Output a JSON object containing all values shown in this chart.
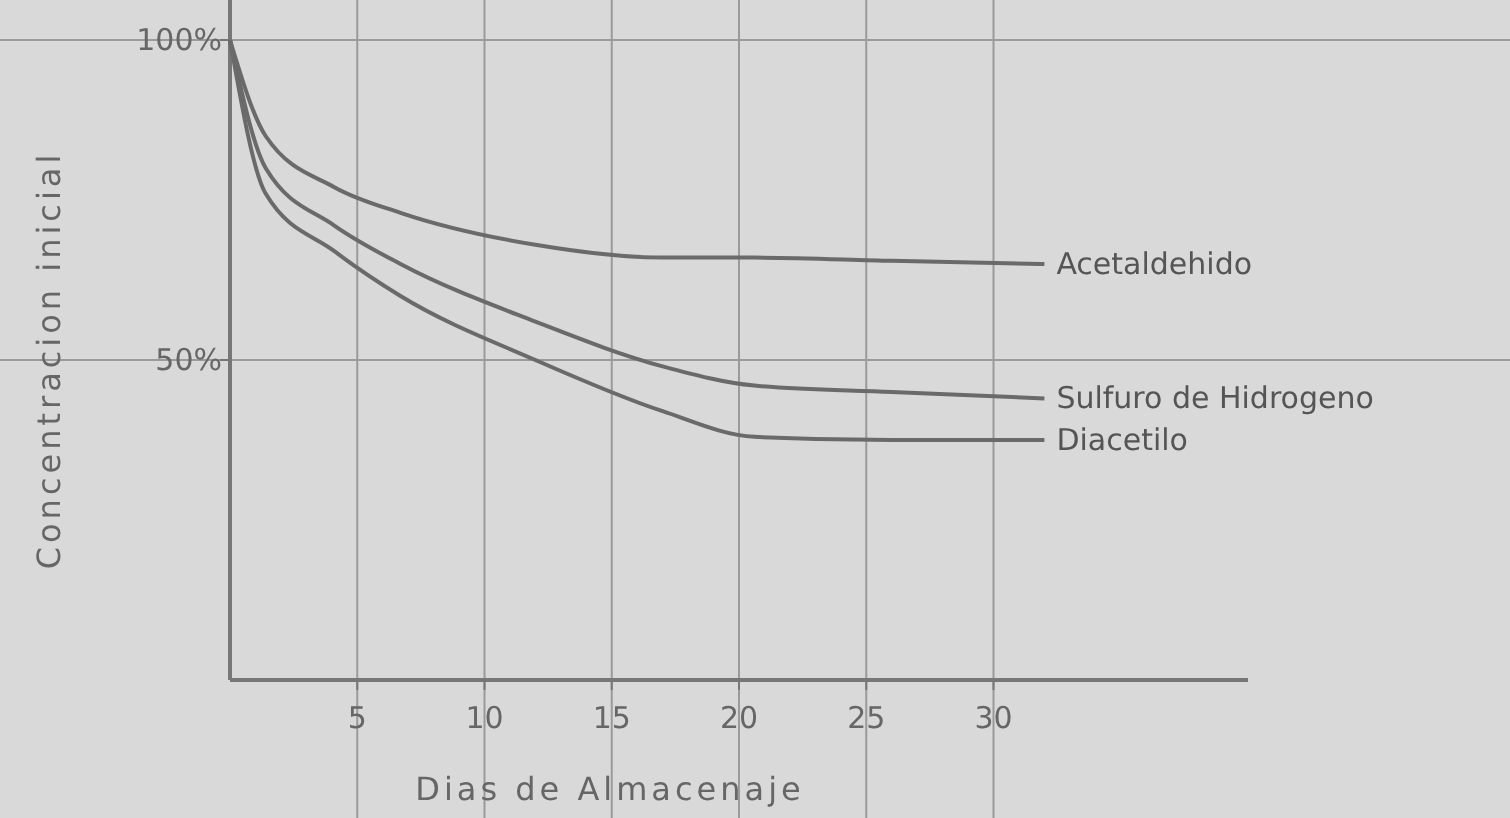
{
  "chart_data": {
    "type": "line",
    "xlabel": "Dias de Almacenaje",
    "ylabel": "Concentracion inicial",
    "xlim": [
      0,
      40
    ],
    "ylim": [
      0,
      100
    ],
    "xticks": [
      5,
      10,
      15,
      20,
      25,
      30
    ],
    "yticks": [
      {
        "value": 100,
        "label": "100%"
      },
      {
        "value": 50,
        "label": "50%"
      }
    ],
    "grid": true,
    "marker": "none",
    "line_style": "solid",
    "x": [
      0,
      1.4,
      4.1,
      6.7,
      12,
      17,
      20.6,
      26,
      32
    ],
    "series": [
      {
        "name": "Acetaldehido",
        "color": "#6a6a6a",
        "values": [
          100,
          85,
          77,
          73,
          68,
          66,
          66,
          65.5,
          65
        ]
      },
      {
        "name": "Sulfuro de Hidrogeno",
        "color": "#6a6a6a",
        "values": [
          100,
          80,
          71,
          65,
          56,
          49,
          46,
          45,
          44
        ]
      },
      {
        "name": "Diacetilo",
        "color": "#6a6a6a",
        "values": [
          100,
          76,
          67,
          60,
          50,
          42,
          38,
          37.5,
          37.5
        ]
      }
    ]
  }
}
